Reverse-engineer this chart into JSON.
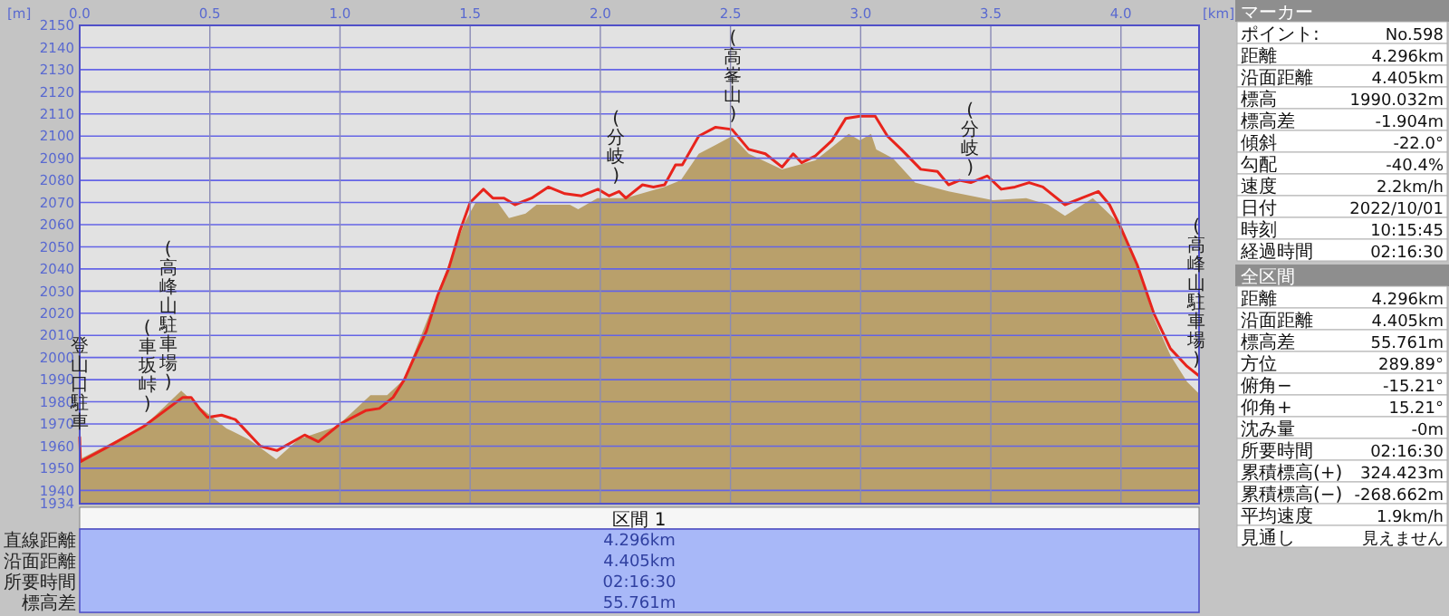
{
  "chart_data": [
    {
      "type": "line",
      "xlabel": "[km]",
      "ylabel": "[m]",
      "xlim": [
        0,
        4.3
      ],
      "ylim": [
        1934,
        2150
      ],
      "xticks": [
        {
          "value": 0,
          "label": "0.0"
        },
        {
          "value": 0.5,
          "label": "0.5"
        },
        {
          "value": 1,
          "label": "1.0"
        },
        {
          "value": 1.5,
          "label": "1.5"
        },
        {
          "value": 2,
          "label": "2.0"
        },
        {
          "value": 2.5,
          "label": "2.5"
        },
        {
          "value": 3,
          "label": "3.0"
        },
        {
          "value": 3.5,
          "label": "3.5"
        },
        {
          "value": 4,
          "label": "4.0"
        }
      ],
      "yticks": [
        1934,
        1940,
        1950,
        1960,
        1970,
        1980,
        1990,
        2000,
        2010,
        2020,
        2030,
        2040,
        2050,
        2060,
        2070,
        2080,
        2090,
        2100,
        2110,
        2120,
        2130,
        2140,
        2150
      ],
      "grid": true,
      "series": [
        {
          "type": "area",
          "color": "#b9a06b",
          "x": [
            0,
            0.098,
            0.247,
            0.39,
            0.436,
            0.5,
            0.564,
            0.649,
            0.755,
            0.84,
            0.989,
            1.117,
            1.181,
            1.245,
            1.372,
            1.479,
            1.521,
            1.606,
            1.649,
            1.713,
            1.755,
            1.883,
            1.915,
            1.989,
            2.096,
            2.245,
            2.309,
            2.378,
            2.443,
            2.506,
            2.57,
            2.698,
            2.826,
            2.89,
            2.954,
            2.997,
            3.04,
            3.06,
            3.124,
            3.209,
            3.338,
            3.508,
            3.636,
            3.72,
            3.785,
            3.892,
            3.998,
            4.062,
            4.126,
            4.19,
            4.254,
            4.297
          ],
          "values": [
            1954,
            1960,
            1969,
            1985,
            1980,
            1974,
            1968,
            1963,
            1954,
            1963,
            1969,
            1983,
            1983,
            1990,
            2028,
            2061,
            2070,
            2070,
            2063,
            2065,
            2069,
            2069,
            2067,
            2072,
            2072,
            2077,
            2080,
            2092,
            2096,
            2100,
            2092,
            2085,
            2089,
            2095,
            2101,
            2098,
            2101,
            2094,
            2090,
            2079,
            2075,
            2071,
            2072,
            2069,
            2064,
            2072,
            2060,
            2042,
            2018,
            2001,
            1989,
            1984
          ]
        },
        {
          "type": "line",
          "color": "#e8241c",
          "x": [
            0,
            0.003,
            0.098,
            0.247,
            0.396,
            0.428,
            0.46,
            0.491,
            0.545,
            0.598,
            0.63,
            0.694,
            0.758,
            0.864,
            0.917,
            1.0,
            1.098,
            1.151,
            1.204,
            1.247,
            1.289,
            1.332,
            1.375,
            1.417,
            1.46,
            1.5,
            1.551,
            1.587,
            1.63,
            1.672,
            1.736,
            1.8,
            1.864,
            1.928,
            1.991,
            2.034,
            2.072,
            2.098,
            2.162,
            2.204,
            2.247,
            2.289,
            2.315,
            2.378,
            2.443,
            2.506,
            2.57,
            2.634,
            2.698,
            2.741,
            2.773,
            2.826,
            2.89,
            2.943,
            2.997,
            3.056,
            3.103,
            3.156,
            3.231,
            3.295,
            3.338,
            3.38,
            3.423,
            3.487,
            3.54,
            3.593,
            3.647,
            3.7,
            3.785,
            3.849,
            3.913,
            3.956,
            3.998,
            4.062,
            4.126,
            4.19,
            4.254,
            4.297
          ],
          "values": [
            1964,
            1953,
            1959,
            1969,
            1982,
            1982,
            1977,
            1973,
            1974,
            1972,
            1968,
            1960,
            1958,
            1965,
            1962,
            1970,
            1976,
            1977,
            1982,
            1990,
            2001,
            2012,
            2028,
            2040,
            2057,
            2070,
            2076,
            2072,
            2072,
            2069,
            2072,
            2077,
            2074,
            2073,
            2076,
            2073,
            2075,
            2072,
            2078,
            2077,
            2078,
            2087,
            2087,
            2100,
            2104,
            2103,
            2094,
            2092,
            2086,
            2092,
            2088,
            2091,
            2098,
            2108,
            2109,
            2109,
            2100,
            2094,
            2085,
            2084,
            2078,
            2080,
            2079,
            2082,
            2076,
            2077,
            2079,
            2077,
            2069,
            2072,
            2075,
            2069,
            2059,
            2042,
            2020,
            2004,
            1996,
            1992
          ]
        }
      ],
      "annotations": [
        {
          "text": "登山口駐車",
          "x": 0,
          "y": 1964
        },
        {
          "text": "(車坂峠)",
          "x": 0.26,
          "y": 1972
        },
        {
          "text": "(高峰山駐車場)",
          "x": 0.34,
          "y": 1982
        },
        {
          "text": "(分岐)",
          "x": 2.06,
          "y": 2075
        },
        {
          "text": "(高峯山)",
          "x": 2.51,
          "y": 2103
        },
        {
          "text": "(分岐)",
          "x": 3.42,
          "y": 2079
        },
        {
          "text": "(高峰山駐車場)",
          "x": 4.29,
          "y": 1992
        }
      ]
    },
    {
      "type": "other",
      "title": "マーカー",
      "annotations": [
        "ポイント:",
        "No.598",
        "距離",
        "4.296km",
        "沿面距離",
        "4.405km",
        "標高",
        "1990.032m",
        "標高差",
        "-1.904m",
        "傾斜",
        "-22.0°",
        "勾配",
        "-40.4%",
        "速度",
        "2.2km/h",
        "日付",
        "2022/10/01",
        "時刻",
        "10:15:45",
        "経過時間",
        "02:16:30"
      ]
    },
    {
      "type": "other",
      "title": "全区間",
      "annotations": [
        "距離",
        "4.296km",
        "沿面距離",
        "4.405km",
        "標高差",
        "55.761m",
        "方位",
        "289.89°",
        "俯角−",
        "-15.21°",
        "仰角+",
        "15.21°",
        "沈み量",
        "-0m",
        "所要時間",
        "02:16:30",
        "累積標高(+)",
        "324.423m",
        "累積標高(−)",
        "-268.662m",
        "平均速度",
        "1.9km/h",
        "見通し",
        "見えません"
      ]
    },
    {
      "type": "other",
      "title": "区間 1",
      "annotations": [
        "直線距離",
        "4.296km",
        "沿面距離",
        "4.405km",
        "所要時間",
        "02:16:30",
        "標高差",
        "55.761m"
      ]
    }
  ]
}
